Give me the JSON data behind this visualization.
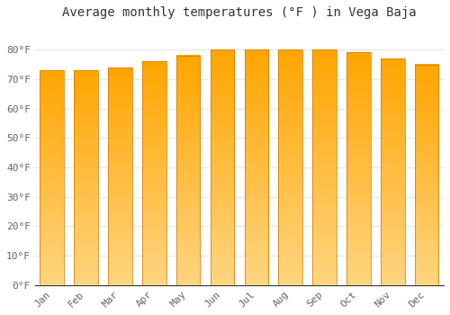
{
  "title": "Average monthly temperatures (°F ) in Vega Baja",
  "months": [
    "Jan",
    "Feb",
    "Mar",
    "Apr",
    "May",
    "Jun",
    "Jul",
    "Aug",
    "Sep",
    "Oct",
    "Nov",
    "Dec"
  ],
  "values": [
    73,
    73,
    74,
    76,
    78,
    80,
    80,
    80,
    80,
    79,
    77,
    75
  ],
  "bar_color": "#FFA500",
  "bar_color_light": "#FFD580",
  "background_color": "#FFFFFF",
  "grid_color": "#E8E8E8",
  "ylim": [
    0,
    88
  ],
  "yticks": [
    0,
    10,
    20,
    30,
    40,
    50,
    60,
    70,
    80
  ],
  "ytick_labels": [
    "0°F",
    "10°F",
    "20°F",
    "30°F",
    "40°F",
    "50°F",
    "60°F",
    "70°F",
    "80°F"
  ],
  "title_fontsize": 10,
  "tick_fontsize": 8,
  "font_family": "monospace"
}
